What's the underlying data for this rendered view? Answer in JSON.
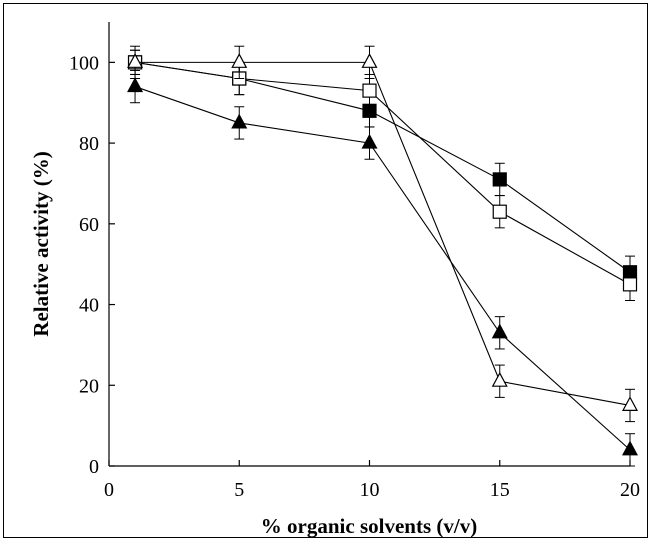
{
  "chart_data": {
    "type": "line",
    "title": "",
    "xlabel": "% organic solvents (v/v)",
    "ylabel": "Relative activity (%)",
    "xlim": [
      0,
      20
    ],
    "ylim": [
      0,
      110
    ],
    "x_ticks": [
      "0",
      "5",
      "10",
      "15",
      "20"
    ],
    "y_ticks": [
      "0",
      "20",
      "40",
      "60",
      "80",
      "100"
    ],
    "grid": false,
    "legend": "none",
    "series": [
      {
        "marker": "filled-square",
        "x": [
          1,
          5,
          10,
          15,
          20
        ],
        "values": [
          100,
          96,
          88,
          71,
          48
        ],
        "errors": [
          3,
          4,
          4,
          4,
          4
        ]
      },
      {
        "marker": "open-square",
        "x": [
          1,
          5,
          10,
          15,
          20
        ],
        "values": [
          100,
          96,
          93,
          63,
          45
        ],
        "errors": [
          3,
          4,
          4,
          4,
          4
        ]
      },
      {
        "marker": "filled-triangle",
        "x": [
          1,
          5,
          10,
          15,
          20
        ],
        "values": [
          94,
          85,
          80,
          33,
          4
        ],
        "errors": [
          4,
          4,
          4,
          4,
          4
        ]
      },
      {
        "marker": "open-triangle",
        "x": [
          1,
          5,
          10,
          15,
          20
        ],
        "values": [
          100,
          100,
          100,
          21,
          15
        ],
        "errors": [
          4,
          4,
          4,
          4,
          4
        ]
      }
    ]
  }
}
